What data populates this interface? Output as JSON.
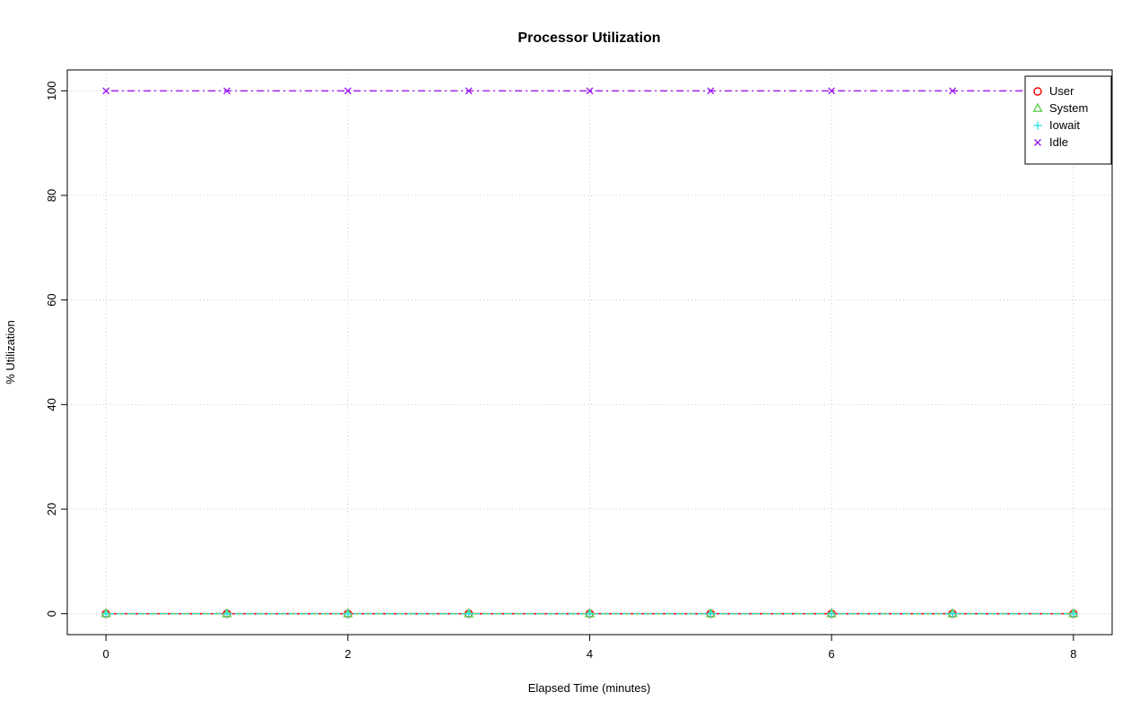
{
  "chart_data": {
    "type": "line",
    "title": "Processor Utilization",
    "xlabel": "Elapsed Time (minutes)",
    "ylabel": "% Utilization",
    "x": [
      0,
      1,
      2,
      3,
      4,
      5,
      6,
      7,
      8
    ],
    "series": [
      {
        "name": "User",
        "color": "#ff0000",
        "marker": "circle",
        "dash": "",
        "values": [
          0,
          0,
          0,
          0,
          0,
          0,
          0,
          0,
          0
        ]
      },
      {
        "name": "System",
        "color": "#61d04f",
        "marker": "triangle",
        "dash": "7 5",
        "values": [
          0,
          0,
          0,
          0,
          0,
          0,
          0,
          0,
          0
        ]
      },
      {
        "name": "Iowait",
        "color": "#28e2e5",
        "marker": "plus",
        "dash": "3 3",
        "values": [
          0,
          0,
          0,
          0,
          0,
          0,
          0,
          0,
          0
        ]
      },
      {
        "name": "Idle",
        "color": "#a020f0",
        "marker": "x",
        "dash": "2 4 8 4",
        "values": [
          100,
          100,
          100,
          100,
          100,
          100,
          100,
          100,
          100
        ]
      }
    ],
    "xlim": [
      0,
      8
    ],
    "ylim": [
      0,
      100
    ],
    "x_ticks": [
      0,
      2,
      4,
      6,
      8
    ],
    "y_ticks": [
      0,
      20,
      40,
      60,
      80,
      100
    ],
    "grid": true,
    "grid_color": "#c8c8c8",
    "axis_color": "#000000",
    "background": "#ffffff",
    "legend_position": "top-right",
    "legend": [
      "User",
      "System",
      "Iowait",
      "Idle"
    ]
  }
}
